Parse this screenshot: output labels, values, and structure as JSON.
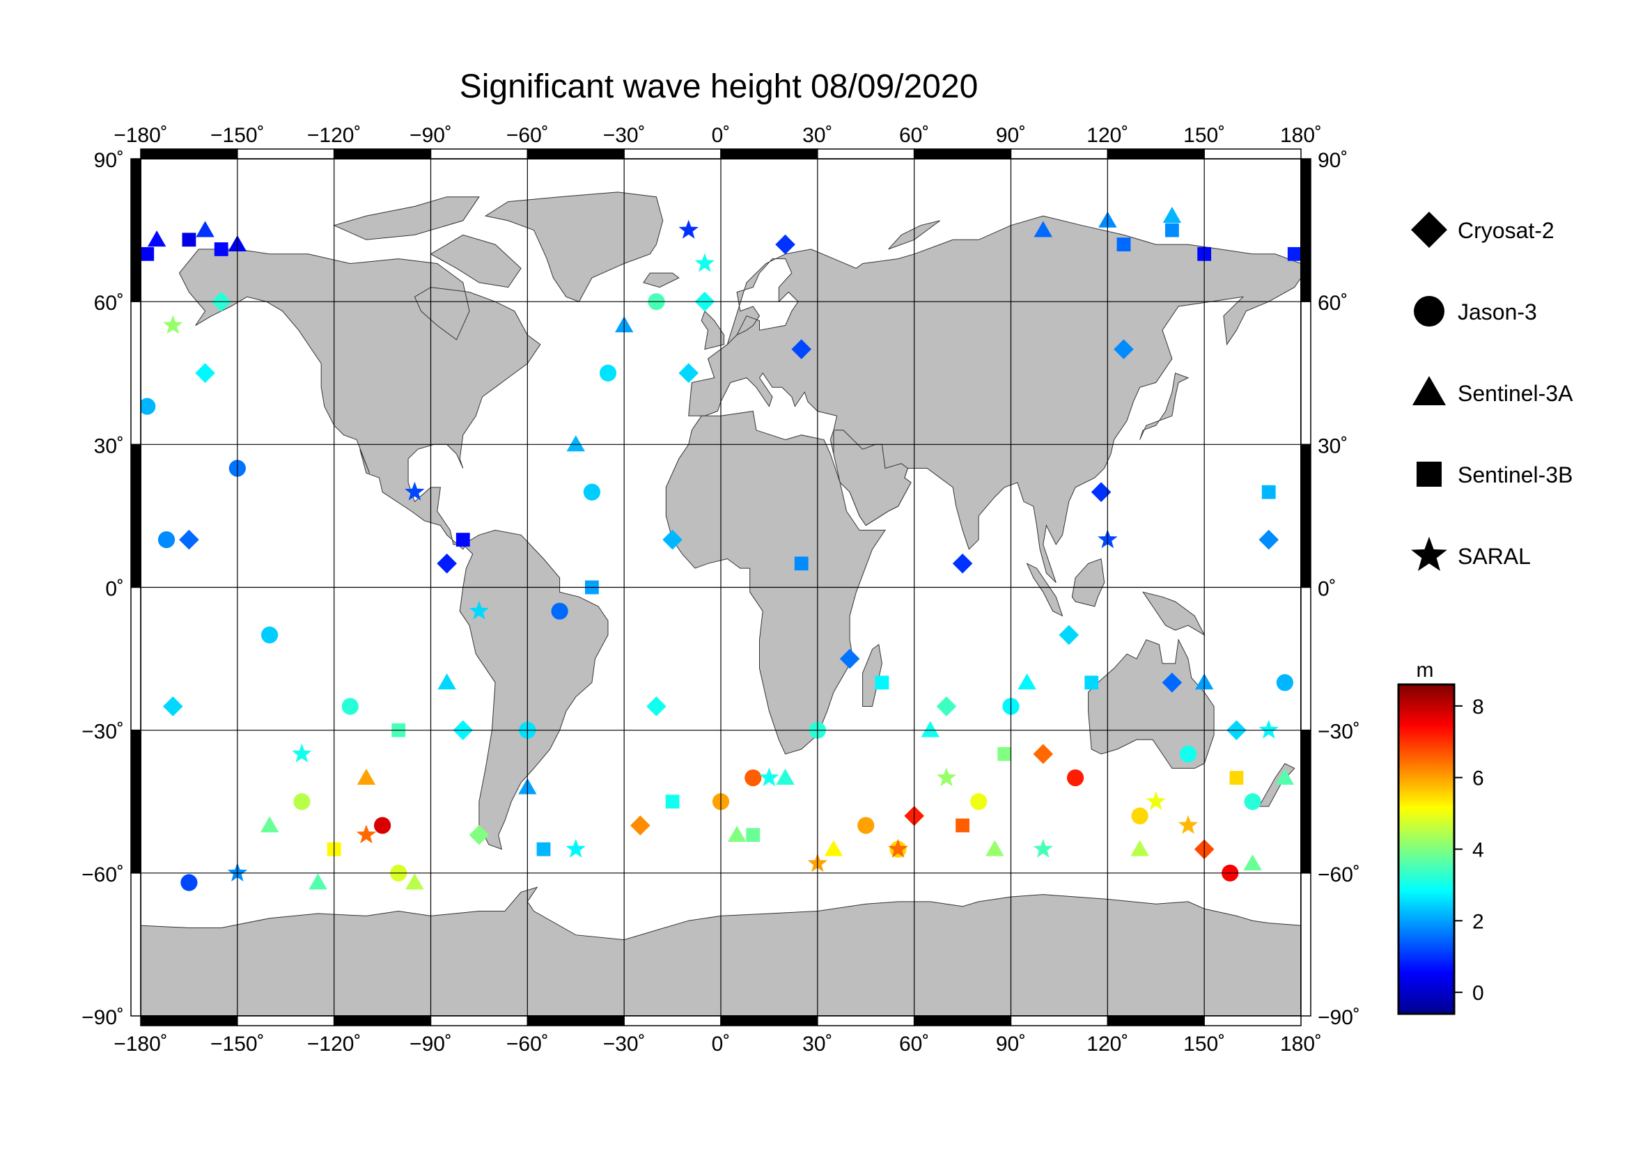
{
  "title": "Significant wave height 08/09/2020",
  "map": {
    "projection": "equirectangular",
    "lon_range": [
      -180,
      180
    ],
    "lat_range": [
      -90,
      90
    ],
    "grid": true,
    "lon_ticks": [
      -180,
      -150,
      -120,
      -90,
      -60,
      -30,
      0,
      30,
      60,
      90,
      120,
      150,
      180
    ],
    "lat_ticks": [
      90,
      60,
      30,
      0,
      -30,
      -60,
      -90
    ],
    "lon_tick_labels": [
      "−180˚",
      "−150˚",
      "−120˚",
      "−90˚",
      "−60˚",
      "−30˚",
      "0˚",
      "30˚",
      "60˚",
      "90˚",
      "120˚",
      "150˚",
      "180˚"
    ],
    "lat_tick_labels": [
      "90˚",
      "60˚",
      "30˚",
      "0˚",
      "−30˚",
      "−60˚",
      "−90˚"
    ],
    "land_color": "#bebebe",
    "ocean_color": "#ffffff"
  },
  "legend": {
    "placement": "right",
    "items": [
      {
        "label": "Cryosat-2",
        "marker": "diamond"
      },
      {
        "label": "Jason-3",
        "marker": "circle"
      },
      {
        "label": "Sentinel-3A",
        "marker": "triangle"
      },
      {
        "label": "Sentinel-3B",
        "marker": "square"
      },
      {
        "label": "SARAL",
        "marker": "star"
      }
    ]
  },
  "colorbar": {
    "unit": "m",
    "min": -0.6,
    "max": 8.6,
    "ticks": [
      0,
      2,
      4,
      6,
      8
    ],
    "tick_labels": [
      "0",
      "2",
      "4",
      "6",
      "8"
    ],
    "colormap": "jet"
  },
  "chart_data": {
    "type": "scatter",
    "description_free": true,
    "value_unit": "m",
    "tracks": [
      {
        "name": "Cryosat-2",
        "marker": "diamond",
        "points": [
          [
            -170,
            -25,
            2.5
          ],
          [
            -165,
            10,
            1.5
          ],
          [
            -160,
            45,
            2.8
          ],
          [
            -155,
            60,
            3.2
          ],
          [
            -85,
            5,
            0.8
          ],
          [
            -80,
            -30,
            2.8
          ],
          [
            -75,
            -52,
            4.0
          ],
          [
            -25,
            -50,
            6.2
          ],
          [
            -20,
            -25,
            3.0
          ],
          [
            -15,
            10,
            2.2
          ],
          [
            -10,
            45,
            2.5
          ],
          [
            -5,
            60,
            3.0
          ],
          [
            20,
            72,
            1.0
          ],
          [
            25,
            50,
            1.2
          ],
          [
            40,
            -15,
            1.6
          ],
          [
            60,
            -48,
            7.2
          ],
          [
            70,
            -25,
            3.4
          ],
          [
            75,
            5,
            1.0
          ],
          [
            100,
            -35,
            6.5
          ],
          [
            108,
            -10,
            2.5
          ],
          [
            118,
            20,
            1.0
          ],
          [
            125,
            50,
            1.8
          ],
          [
            140,
            -20,
            1.5
          ],
          [
            150,
            -55,
            6.8
          ],
          [
            160,
            -30,
            2.5
          ],
          [
            170,
            10,
            1.8
          ]
        ]
      },
      {
        "name": "Jason-3",
        "marker": "circle",
        "points": [
          [
            -178,
            38,
            2.2
          ],
          [
            -172,
            10,
            1.8
          ],
          [
            -165,
            -62,
            1.2
          ],
          [
            -150,
            25,
            1.6
          ],
          [
            -140,
            -10,
            2.4
          ],
          [
            -130,
            -45,
            4.5
          ],
          [
            -115,
            -25,
            3.2
          ],
          [
            -105,
            -50,
            7.8
          ],
          [
            -100,
            -60,
            4.8
          ],
          [
            -60,
            -30,
            2.6
          ],
          [
            -50,
            -5,
            1.5
          ],
          [
            -40,
            20,
            2.4
          ],
          [
            -35,
            45,
            2.6
          ],
          [
            -20,
            60,
            3.5
          ],
          [
            0,
            -45,
            6.0
          ],
          [
            10,
            -40,
            6.6
          ],
          [
            30,
            -30,
            3.2
          ],
          [
            45,
            -50,
            6.0
          ],
          [
            55,
            -55,
            5.5
          ],
          [
            80,
            -45,
            5.0
          ],
          [
            90,
            -25,
            2.8
          ],
          [
            110,
            -40,
            7.2
          ],
          [
            130,
            -48,
            5.5
          ],
          [
            145,
            -35,
            3.0
          ],
          [
            158,
            -60,
            7.5
          ],
          [
            165,
            -45,
            3.2
          ],
          [
            175,
            -20,
            2.2
          ]
        ]
      },
      {
        "name": "Sentinel-3A",
        "marker": "triangle",
        "points": [
          [
            -175,
            73,
            0.6
          ],
          [
            -160,
            75,
            1.0
          ],
          [
            -150,
            72,
            0.4
          ],
          [
            -140,
            -50,
            3.8
          ],
          [
            -125,
            -62,
            3.6
          ],
          [
            -110,
            -40,
            6.0
          ],
          [
            -95,
            -62,
            4.5
          ],
          [
            -85,
            -20,
            2.5
          ],
          [
            -60,
            -42,
            2.0
          ],
          [
            -45,
            30,
            2.2
          ],
          [
            -30,
            55,
            2.0
          ],
          [
            5,
            -52,
            4.0
          ],
          [
            20,
            -40,
            3.2
          ],
          [
            35,
            -55,
            5.2
          ],
          [
            65,
            -30,
            3.0
          ],
          [
            85,
            -55,
            4.2
          ],
          [
            95,
            -20,
            2.8
          ],
          [
            100,
            75,
            1.5
          ],
          [
            120,
            77,
            1.8
          ],
          [
            130,
            -55,
            4.5
          ],
          [
            140,
            78,
            2.2
          ],
          [
            150,
            -20,
            2.0
          ],
          [
            165,
            -58,
            3.8
          ],
          [
            175,
            -40,
            3.6
          ]
        ]
      },
      {
        "name": "Sentinel-3B",
        "marker": "square",
        "points": [
          [
            -178,
            70,
            0.5
          ],
          [
            -165,
            73,
            0.3
          ],
          [
            -155,
            71,
            0.6
          ],
          [
            -120,
            -55,
            5.2
          ],
          [
            -100,
            -30,
            3.5
          ],
          [
            -80,
            10,
            0.6
          ],
          [
            -55,
            -55,
            2.2
          ],
          [
            -40,
            0,
            2.0
          ],
          [
            -15,
            -45,
            3.0
          ],
          [
            10,
            -52,
            3.8
          ],
          [
            25,
            5,
            1.8
          ],
          [
            50,
            -20,
            2.8
          ],
          [
            75,
            -50,
            6.6
          ],
          [
            88,
            -35,
            4.0
          ],
          [
            115,
            -20,
            2.5
          ],
          [
            125,
            72,
            1.5
          ],
          [
            140,
            75,
            1.8
          ],
          [
            150,
            70,
            0.6
          ],
          [
            160,
            -40,
            5.5
          ],
          [
            170,
            20,
            2.2
          ],
          [
            178,
            70,
            0.8
          ]
        ]
      },
      {
        "name": "SARAL",
        "marker": "star",
        "points": [
          [
            -170,
            55,
            4.2
          ],
          [
            -150,
            -60,
            1.8
          ],
          [
            -130,
            -35,
            3.0
          ],
          [
            -110,
            -52,
            6.5
          ],
          [
            -95,
            20,
            1.2
          ],
          [
            -75,
            -5,
            2.5
          ],
          [
            -45,
            -55,
            2.8
          ],
          [
            -10,
            75,
            1.0
          ],
          [
            -5,
            68,
            3.0
          ],
          [
            15,
            -40,
            3.0
          ],
          [
            30,
            -58,
            6.0
          ],
          [
            55,
            -55,
            6.5
          ],
          [
            70,
            -40,
            4.2
          ],
          [
            100,
            -55,
            3.5
          ],
          [
            120,
            10,
            1.2
          ],
          [
            135,
            -45,
            5.0
          ],
          [
            145,
            -50,
            5.8
          ],
          [
            170,
            -30,
            2.8
          ]
        ]
      }
    ]
  }
}
